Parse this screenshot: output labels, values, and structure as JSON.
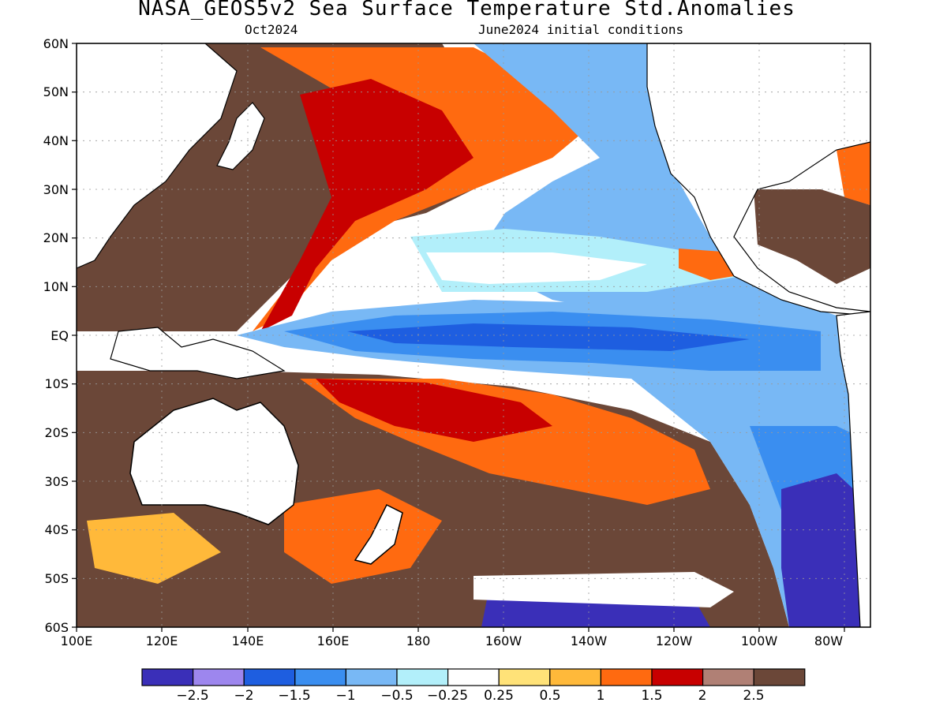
{
  "title": "NASA_GEOS5v2 Sea Surface Temperature Std.Anomalies",
  "subtitle_left": "Oct2024",
  "subtitle_right": "June2024 initial conditions",
  "lat_ticks": [
    "60N",
    "50N",
    "40N",
    "30N",
    "20N",
    "10N",
    "EQ",
    "10S",
    "20S",
    "30S",
    "40S",
    "50S",
    "60S"
  ],
  "lon_ticks": [
    "100E",
    "120E",
    "140E",
    "160E",
    "180",
    "160W",
    "140W",
    "120W",
    "100W",
    "80W"
  ],
  "colorbar": {
    "colors": [
      "#3a2fb8",
      "#9d86ee",
      "#1e5ee0",
      "#3a8ef0",
      "#78b8f5",
      "#b2effa",
      "#ffffff",
      "#ffe278",
      "#ffb93a",
      "#ff6a10",
      "#c80000",
      "#b08075",
      "#6b4738"
    ],
    "labels": [
      "−2.5",
      "−2",
      "−1.5",
      "−1",
      "−0.5",
      "−0.25",
      "0.25",
      "0.5",
      "1",
      "1.5",
      "2",
      "2.5"
    ]
  }
}
